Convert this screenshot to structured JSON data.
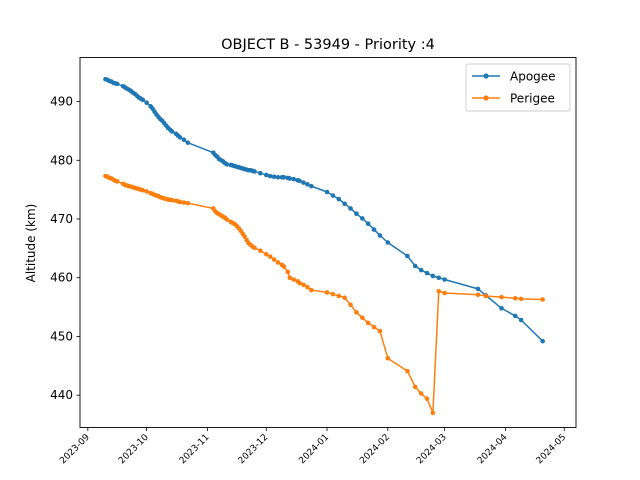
{
  "chart_data": {
    "type": "line",
    "title": "OBJECT B - 53949 - Priority :4",
    "xlabel": "",
    "ylabel": "Altitude (km)",
    "xlim": [
      "2023-08-28",
      "2024-05-07"
    ],
    "ylim": [
      434.5,
      497.5
    ],
    "x_ticks": [
      "2023-09",
      "2023-10",
      "2023-11",
      "2023-12",
      "2024-01",
      "2024-02",
      "2024-03",
      "2024-04",
      "2024-05"
    ],
    "y_ticks": [
      440,
      450,
      460,
      470,
      480,
      490
    ],
    "grid": false,
    "legend": "top-right",
    "series": [
      {
        "name": "Apogee",
        "color": "#1f77b4",
        "x": [
          "2023-09-10",
          "2023-09-11",
          "2023-09-12",
          "2023-09-13",
          "2023-09-14",
          "2023-09-15",
          "2023-09-16",
          "2023-09-19",
          "2023-09-20",
          "2023-09-21",
          "2023-09-22",
          "2023-09-23",
          "2023-09-24",
          "2023-09-25",
          "2023-09-26",
          "2023-09-27",
          "2023-09-28",
          "2023-09-29",
          "2023-10-01",
          "2023-10-03",
          "2023-10-04",
          "2023-10-05",
          "2023-10-06",
          "2023-10-07",
          "2023-10-08",
          "2023-10-09",
          "2023-10-10",
          "2023-10-11",
          "2023-10-12",
          "2023-10-13",
          "2023-10-14",
          "2023-10-16",
          "2023-10-17",
          "2023-10-18",
          "2023-10-20",
          "2023-10-22",
          "2023-11-04",
          "2023-11-05",
          "2023-11-06",
          "2023-11-07",
          "2023-11-08",
          "2023-11-09",
          "2023-11-10",
          "2023-11-11",
          "2023-11-13",
          "2023-11-14",
          "2023-11-15",
          "2023-11-16",
          "2023-11-17",
          "2023-11-18",
          "2023-11-19",
          "2023-11-20",
          "2023-11-21",
          "2023-11-22",
          "2023-11-23",
          "2023-11-24",
          "2023-11-25",
          "2023-11-28",
          "2023-12-01",
          "2023-12-03",
          "2023-12-05",
          "2023-12-07",
          "2023-12-09",
          "2023-12-10",
          "2023-12-12",
          "2023-12-13",
          "2023-12-15",
          "2023-12-17",
          "2023-12-18",
          "2023-12-20",
          "2023-12-22",
          "2023-12-24",
          "2024-01-01",
          "2024-01-04",
          "2024-01-07",
          "2024-01-10",
          "2024-01-13",
          "2024-01-16",
          "2024-01-19",
          "2024-01-22",
          "2024-01-25",
          "2024-01-28",
          "2024-02-01",
          "2024-02-11",
          "2024-02-15",
          "2024-02-18",
          "2024-02-21",
          "2024-02-24",
          "2024-02-27",
          "2024-03-01",
          "2024-03-18",
          "2024-03-22",
          "2024-03-30",
          "2024-04-06",
          "2024-04-09",
          "2024-04-20"
        ],
        "values": [
          493.8,
          493.7,
          493.5,
          493.4,
          493.2,
          493.1,
          493.0,
          492.6,
          492.4,
          492.2,
          492.0,
          491.8,
          491.5,
          491.3,
          491.0,
          490.7,
          490.5,
          490.3,
          489.8,
          489.2,
          488.8,
          488.3,
          487.8,
          487.4,
          487.0,
          486.7,
          486.3,
          485.9,
          485.5,
          485.2,
          484.9,
          484.5,
          484.2,
          483.9,
          483.5,
          483.0,
          481.3,
          480.9,
          480.6,
          480.2,
          480.0,
          479.8,
          479.5,
          479.3,
          479.2,
          479.1,
          479.0,
          478.9,
          478.8,
          478.7,
          478.6,
          478.5,
          478.4,
          478.3,
          478.3,
          478.2,
          478.1,
          477.8,
          477.5,
          477.3,
          477.2,
          477.1,
          477.1,
          477.1,
          477.0,
          476.9,
          476.8,
          476.6,
          476.5,
          476.2,
          475.9,
          475.6,
          474.6,
          474.0,
          473.4,
          472.6,
          471.8,
          470.9,
          470.1,
          469.2,
          468.2,
          467.2,
          466.0,
          463.7,
          462.0,
          461.3,
          460.8,
          460.3,
          460.0,
          459.7,
          458.1,
          457.0,
          454.8,
          453.5,
          452.8,
          449.2
        ]
      },
      {
        "name": "Perigee",
        "color": "#ff7f0e",
        "x": [
          "2023-09-10",
          "2023-09-11",
          "2023-09-12",
          "2023-09-13",
          "2023-09-14",
          "2023-09-15",
          "2023-09-16",
          "2023-09-19",
          "2023-09-20",
          "2023-09-21",
          "2023-09-22",
          "2023-09-23",
          "2023-09-24",
          "2023-09-25",
          "2023-09-26",
          "2023-09-27",
          "2023-09-28",
          "2023-09-29",
          "2023-10-01",
          "2023-10-03",
          "2023-10-04",
          "2023-10-05",
          "2023-10-06",
          "2023-10-07",
          "2023-10-08",
          "2023-10-09",
          "2023-10-10",
          "2023-10-11",
          "2023-10-12",
          "2023-10-13",
          "2023-10-14",
          "2023-10-16",
          "2023-10-17",
          "2023-10-18",
          "2023-10-20",
          "2023-10-22",
          "2023-11-04",
          "2023-11-05",
          "2023-11-06",
          "2023-11-07",
          "2023-11-08",
          "2023-11-09",
          "2023-11-10",
          "2023-11-11",
          "2023-11-13",
          "2023-11-14",
          "2023-11-15",
          "2023-11-16",
          "2023-11-17",
          "2023-11-18",
          "2023-11-19",
          "2023-11-20",
          "2023-11-21",
          "2023-11-22",
          "2023-11-23",
          "2023-11-24",
          "2023-11-25",
          "2023-11-28",
          "2023-12-01",
          "2023-12-03",
          "2023-12-05",
          "2023-12-07",
          "2023-12-09",
          "2023-12-10",
          "2023-12-12",
          "2023-12-13",
          "2023-12-15",
          "2023-12-17",
          "2023-12-18",
          "2023-12-20",
          "2023-12-22",
          "2023-12-24",
          "2024-01-01",
          "2024-01-04",
          "2024-01-07",
          "2024-01-10",
          "2024-01-13",
          "2024-01-16",
          "2024-01-19",
          "2024-01-22",
          "2024-01-25",
          "2024-01-28",
          "2024-02-01",
          "2024-02-11",
          "2024-02-15",
          "2024-02-18",
          "2024-02-21",
          "2024-02-24",
          "2024-02-27",
          "2024-03-01",
          "2024-03-18",
          "2024-03-22",
          "2024-03-30",
          "2024-04-06",
          "2024-04-09",
          "2024-04-20"
        ],
        "values": [
          477.3,
          477.2,
          477.0,
          476.9,
          476.7,
          476.5,
          476.4,
          476.0,
          475.8,
          475.7,
          475.6,
          475.5,
          475.4,
          475.3,
          475.2,
          475.1,
          475.0,
          474.9,
          474.7,
          474.4,
          474.3,
          474.1,
          474.0,
          473.9,
          473.7,
          473.6,
          473.5,
          473.4,
          473.3,
          473.3,
          473.2,
          473.1,
          473.0,
          472.9,
          472.8,
          472.7,
          471.8,
          471.3,
          471.0,
          470.8,
          470.6,
          470.4,
          470.2,
          469.9,
          469.5,
          469.3,
          469.1,
          468.8,
          468.4,
          468.0,
          467.5,
          467.0,
          466.4,
          465.9,
          465.6,
          465.3,
          465.1,
          464.6,
          464.0,
          463.6,
          463.1,
          462.6,
          462.2,
          461.9,
          461.0,
          460.0,
          459.7,
          459.4,
          459.1,
          458.8,
          458.4,
          457.9,
          457.5,
          457.2,
          456.9,
          456.6,
          455.4,
          454.1,
          453.2,
          452.3,
          451.6,
          450.9,
          446.3,
          444.1,
          441.4,
          440.3,
          439.4,
          437.0,
          457.7,
          457.4,
          457.1,
          456.9,
          456.7,
          456.5,
          456.4,
          456.3
        ]
      }
    ]
  }
}
